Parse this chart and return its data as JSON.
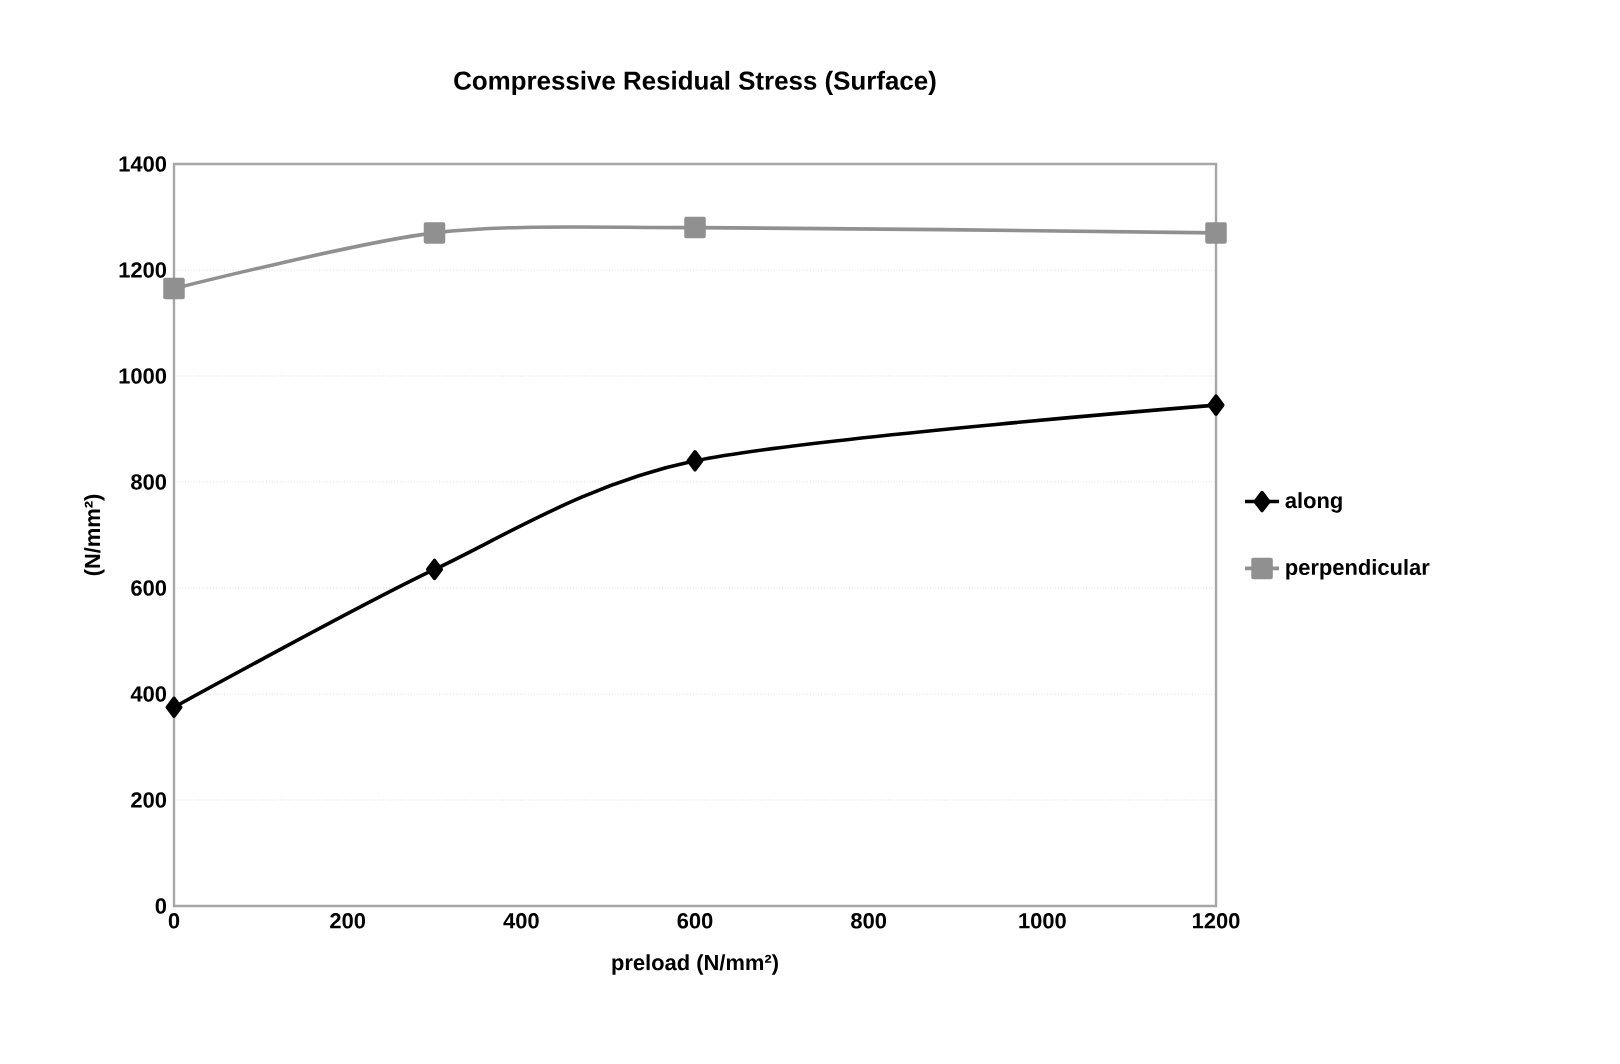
{
  "chart_data": {
    "type": "line",
    "title": "Compressive Residual Stress (Surface)",
    "xlabel": "preload (N/mm²)",
    "ylabel": "(N/mm²)",
    "x": [
      0,
      300,
      600,
      1200
    ],
    "series": [
      {
        "name": "along",
        "color": "#000000",
        "marker": "diamond",
        "values": [
          375,
          635,
          840,
          945
        ]
      },
      {
        "name": "perpendicular",
        "color": "#909090",
        "marker": "square",
        "values": [
          1165,
          1270,
          1280,
          1270
        ]
      }
    ],
    "xlim": [
      0,
      1200
    ],
    "xticks": [
      0,
      200,
      400,
      600,
      800,
      1000,
      1200
    ],
    "ylim": [
      0,
      1400
    ],
    "yticks": [
      0,
      200,
      400,
      600,
      800,
      1000,
      1200,
      1400
    ],
    "grid": "y",
    "legend": "right",
    "line_style": "solid"
  }
}
